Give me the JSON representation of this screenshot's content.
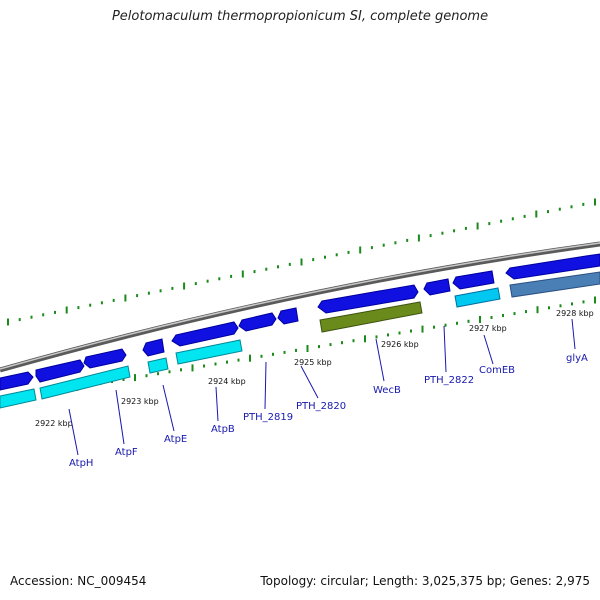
{
  "title": "Pelotomaculum thermopropionicum SI, complete genome",
  "footer": {
    "accession": "Accession: NC_009454",
    "topology": "Topology: circular; Length: 3,025,375 bp; Genes: 2,975"
  },
  "colors": {
    "blue_gene": "#1010e0",
    "cyan_gene": "#00e5f0",
    "olive_gene": "#6b8a1c",
    "steel_gene": "#4a7fb5",
    "backbone": "#8a8a8a",
    "tick": "#1a8a1a",
    "label": "#1818b0"
  },
  "kbp_labels": [
    {
      "id": "k2922",
      "text": "2922 kbp"
    },
    {
      "id": "k2923",
      "text": "2923 kbp"
    },
    {
      "id": "k2924",
      "text": "2924 kbp"
    },
    {
      "id": "k2925",
      "text": "2925 kbp"
    },
    {
      "id": "k2926",
      "text": "2926 kbp"
    },
    {
      "id": "k2927",
      "text": "2927 kbp"
    },
    {
      "id": "k2928",
      "text": "2928 kbp"
    }
  ],
  "gene_labels": [
    {
      "id": "atph",
      "text": "AtpH"
    },
    {
      "id": "atpf",
      "text": "AtpF"
    },
    {
      "id": "atpe",
      "text": "AtpE"
    },
    {
      "id": "atpb",
      "text": "AtpB"
    },
    {
      "id": "pth2819",
      "text": "PTH_2819"
    },
    {
      "id": "pth2820",
      "text": "PTH_2820"
    },
    {
      "id": "wecb",
      "text": "WecB"
    },
    {
      "id": "pth2822",
      "text": "PTH_2822"
    },
    {
      "id": "comeb",
      "text": "ComEB"
    },
    {
      "id": "glya",
      "text": "glyA"
    }
  ]
}
